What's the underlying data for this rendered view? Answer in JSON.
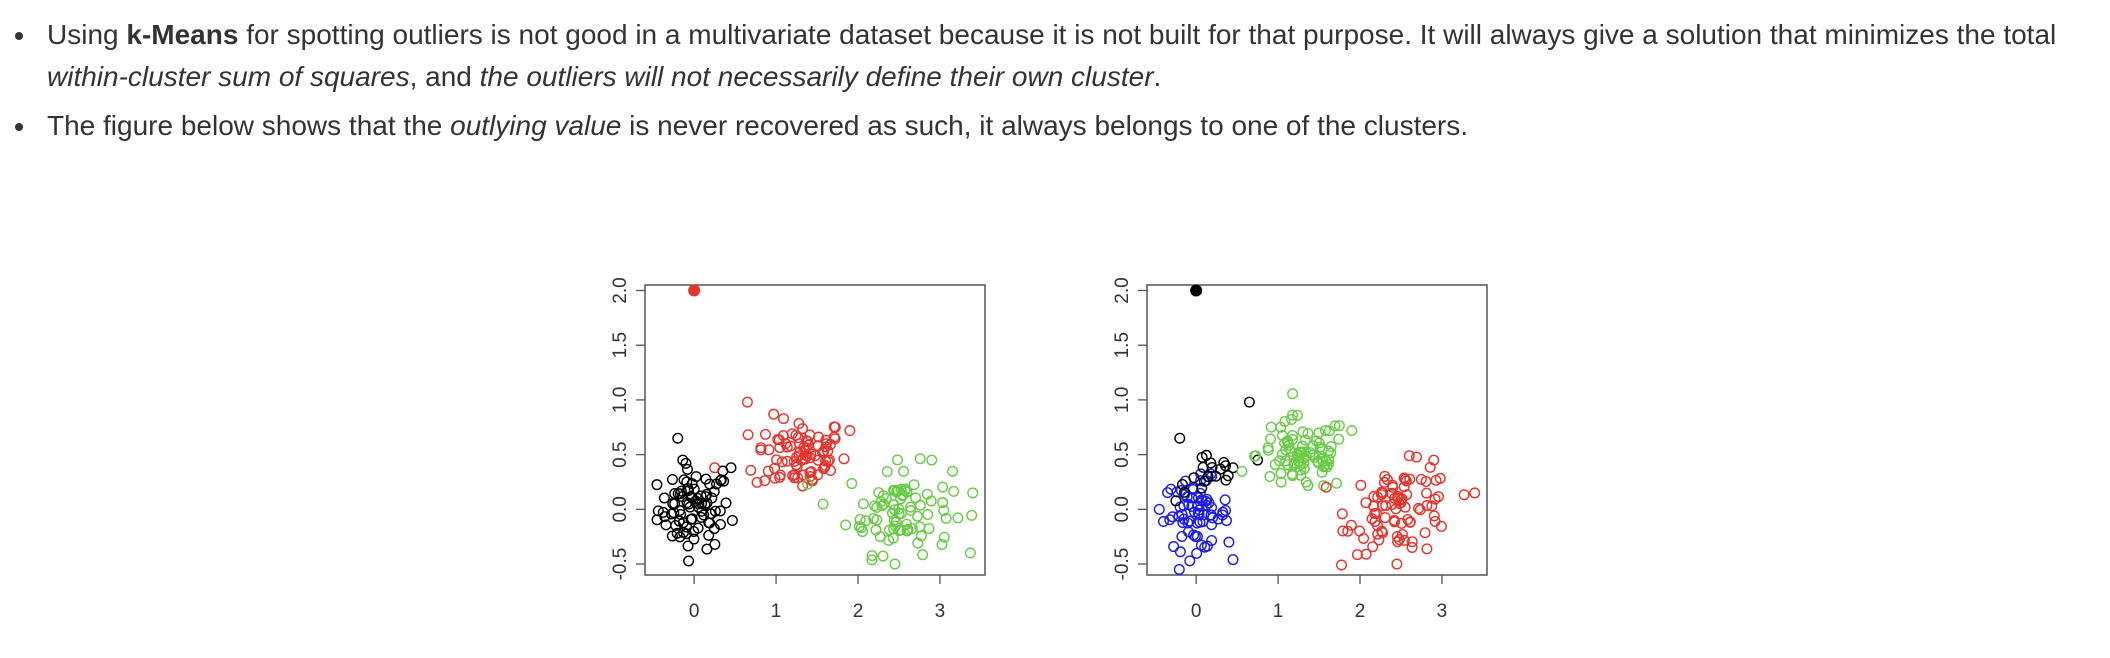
{
  "document": {
    "bullet1": {
      "text_a": "Using ",
      "bold": "k-Means",
      "text_b": " for spotting outliers is not good in a multivariate dataset because it is not built for that purpose. It will always give a solution that minimizes the total",
      "italic_a": "within-cluster sum of squares",
      "text_c": ", and ",
      "italic_b": "the outliers will not necessarily define their own cluster",
      "text_d": "."
    },
    "bullet2": {
      "text_a": "The figure below shows that the ",
      "italic": "outlying value",
      "text_b": " is never recovered as such, it always belongs to one of the clusters."
    }
  },
  "chart_data": [
    {
      "type": "scatter",
      "title": "",
      "xlabel": "",
      "ylabel": "",
      "xlim": [
        -0.6,
        3.55
      ],
      "ylim": [
        -0.6,
        2.05
      ],
      "x_ticks": [
        "0",
        "1",
        "2",
        "3"
      ],
      "y_ticks": [
        "-0.5",
        "0.0",
        "0.5",
        "1.0",
        "1.5",
        "2.0"
      ],
      "clusters": [
        {
          "color": "#000000",
          "center": [
            0.0,
            0.0
          ],
          "spread": [
            0.22,
            0.18
          ],
          "count": 85,
          "extra": [
            [
              -0.2,
              0.65
            ],
            [
              0.45,
              0.38
            ],
            [
              0.35,
              0.35
            ],
            [
              -0.1,
              0.42
            ]
          ]
        },
        {
          "color": "#e8322a",
          "center": [
            1.3,
            0.5
          ],
          "spread": [
            0.28,
            0.17
          ],
          "count": 85,
          "extra": [
            [
              0.65,
              0.98
            ],
            [
              0.25,
              0.38
            ],
            [
              1.9,
              0.72
            ]
          ]
        },
        {
          "color": "#66cc44",
          "center": [
            2.5,
            0.0
          ],
          "spread": [
            0.32,
            0.2
          ],
          "count": 85,
          "extra": [
            [
              2.9,
              0.45
            ],
            [
              2.45,
              -0.5
            ],
            [
              3.4,
              0.15
            ]
          ]
        }
      ],
      "outlier": {
        "x": 0.0,
        "y": 2.0,
        "color": "#e8322a"
      }
    },
    {
      "type": "scatter",
      "title": "",
      "xlabel": "",
      "ylabel": "",
      "xlim": [
        -0.6,
        3.55
      ],
      "ylim": [
        -0.6,
        2.05
      ],
      "x_ticks": [
        "0",
        "1",
        "2",
        "3"
      ],
      "y_ticks": [
        "-0.5",
        "0.0",
        "0.5",
        "1.0",
        "1.5",
        "2.0"
      ],
      "clusters": [
        {
          "color": "#1a1aee",
          "center": [
            0.0,
            -0.05
          ],
          "spread": [
            0.2,
            0.16
          ],
          "count": 70,
          "extra": [
            [
              -0.45,
              0.0
            ],
            [
              0.4,
              -0.3
            ]
          ]
        },
        {
          "color": "#000000",
          "center": [
            0.15,
            0.3
          ],
          "spread": [
            0.2,
            0.12
          ],
          "count": 18,
          "extra": [
            [
              -0.2,
              0.65
            ],
            [
              0.65,
              0.98
            ],
            [
              0.45,
              0.38
            ],
            [
              0.75,
              0.45
            ]
          ]
        },
        {
          "color": "#66cc44",
          "center": [
            1.3,
            0.5
          ],
          "spread": [
            0.28,
            0.17
          ],
          "count": 85,
          "extra": [
            [
              1.9,
              0.72
            ],
            [
              0.9,
              0.3
            ]
          ]
        },
        {
          "color": "#e8322a",
          "center": [
            2.5,
            0.0
          ],
          "spread": [
            0.32,
            0.2
          ],
          "count": 85,
          "extra": [
            [
              2.9,
              0.45
            ],
            [
              2.45,
              -0.5
            ],
            [
              3.4,
              0.15
            ],
            [
              1.85,
              -0.2
            ]
          ]
        }
      ],
      "outlier": {
        "x": 0.0,
        "y": 2.0,
        "color": "#000000"
      }
    }
  ]
}
